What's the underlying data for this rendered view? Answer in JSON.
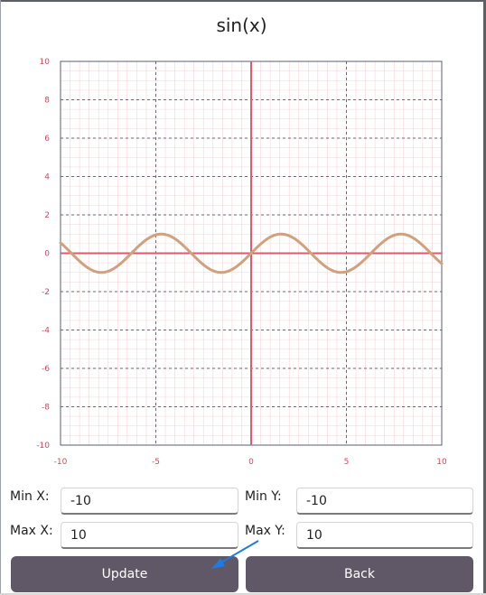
{
  "chart": {
    "title": "sin(x)"
  },
  "chart_data": {
    "type": "line",
    "function": "sin(x)",
    "series": [
      {
        "name": "sin(x)",
        "color": "#d1a17e",
        "fn": "sin"
      }
    ],
    "xlim": [
      -10,
      10
    ],
    "ylim": [
      -10,
      10
    ],
    "x_ticks": [
      -10,
      -5,
      0,
      5,
      10
    ],
    "y_ticks": [
      10,
      8,
      6,
      4,
      2,
      0,
      -2,
      -4,
      -6,
      -8,
      -10
    ],
    "grid": true,
    "axis_color": "#e05a6e",
    "tick_label_color": "#d04a5e"
  },
  "form": {
    "min_x_label": "Min X:",
    "min_x_value": "-10",
    "max_x_label": "Max X:",
    "max_x_value": "10",
    "min_y_label": "Min Y:",
    "min_y_value": "-10",
    "max_y_label": "Max Y:",
    "max_y_value": "10"
  },
  "buttons": {
    "update_label": "Update",
    "back_label": "Back"
  },
  "colors": {
    "button_bg": "#605866",
    "pointer_arrow": "#1e7be0"
  }
}
